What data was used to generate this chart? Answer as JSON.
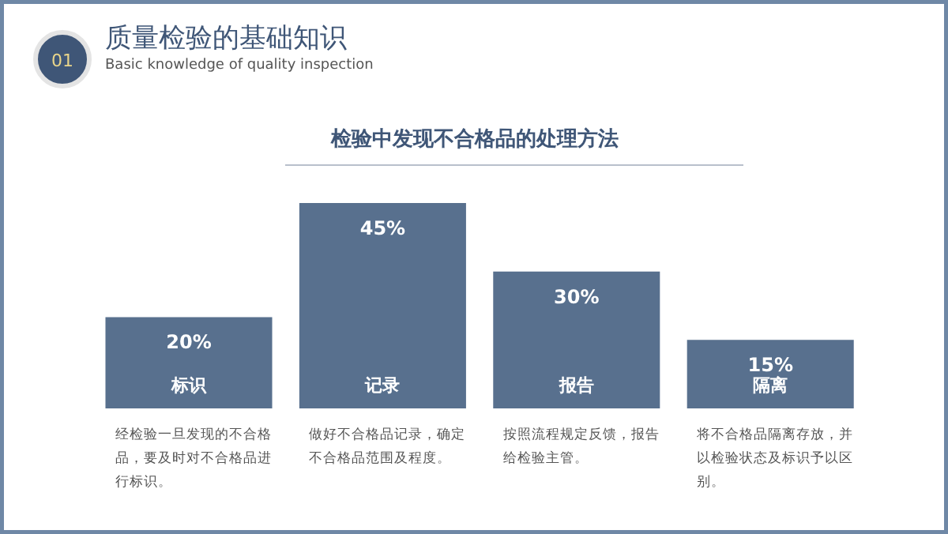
{
  "chart_data": {
    "type": "bar",
    "title": "检验中发现不合格品的处理方法",
    "categories": [
      "标识",
      "记录",
      "报告",
      "隔离"
    ],
    "values": [
      20,
      45,
      30,
      15
    ],
    "value_labels": [
      "20%",
      "45%",
      "30%",
      "15%"
    ],
    "color": "#58708e",
    "grid": false,
    "annotations": [
      "01",
      "质量检验的基础知识",
      "Basic knowledge of quality inspection",
      "经检验一旦发现的不合格品，要及时对不合格品进行标识。",
      "做好不合格品记录，确定不合格品范围及程度。",
      "按照流程规定反馈，报告给检验主管。",
      "将不合格品隔离存放，并以检验状态及标识予以区别。"
    ]
  }
}
